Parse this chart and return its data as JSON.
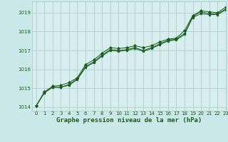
{
  "title": "Graphe pression niveau de la mer (hPa)",
  "bg_color": "#cbe8e8",
  "plot_bg_color": "#d6eeee",
  "grid_color": "#a8c8c8",
  "line_color": "#1a5c1a",
  "xlim": [
    -0.5,
    23
  ],
  "ylim": [
    1013.8,
    1019.6
  ],
  "yticks": [
    1014,
    1015,
    1016,
    1017,
    1018,
    1019
  ],
  "xticks": [
    0,
    1,
    2,
    3,
    4,
    5,
    6,
    7,
    8,
    9,
    10,
    11,
    12,
    13,
    14,
    15,
    16,
    17,
    18,
    19,
    20,
    21,
    22,
    23
  ],
  "series1_x": [
    0,
    1,
    2,
    3,
    4,
    5,
    6,
    7,
    8,
    9,
    10,
    11,
    12,
    13,
    14,
    15,
    16,
    17,
    18,
    19,
    20,
    21,
    22,
    23
  ],
  "series1_y": [
    1014.05,
    1014.8,
    1015.1,
    1015.15,
    1015.3,
    1015.55,
    1016.25,
    1016.5,
    1016.85,
    1017.15,
    1017.1,
    1017.15,
    1017.25,
    1017.15,
    1017.25,
    1017.45,
    1017.6,
    1017.65,
    1018.05,
    1018.85,
    1019.1,
    1019.05,
    1019.0,
    1019.3
  ],
  "series2_x": [
    0,
    1,
    2,
    3,
    4,
    5,
    6,
    7,
    8,
    9,
    10,
    11,
    12,
    13,
    14,
    15,
    16,
    17,
    18,
    19,
    20,
    21,
    22,
    23
  ],
  "series2_y": [
    1014.05,
    1014.75,
    1015.05,
    1015.05,
    1015.15,
    1015.45,
    1016.1,
    1016.35,
    1016.7,
    1017.0,
    1016.95,
    1017.0,
    1017.1,
    1016.95,
    1017.1,
    1017.3,
    1017.5,
    1017.55,
    1017.85,
    1018.75,
    1018.95,
    1018.9,
    1018.9,
    1019.15
  ],
  "series3_x": [
    0,
    1,
    2,
    3,
    4,
    5,
    6,
    7,
    8,
    9,
    10,
    11,
    12,
    13,
    14,
    15,
    16,
    17,
    18,
    19,
    20,
    21,
    22,
    23
  ],
  "series3_y": [
    1014.05,
    1014.75,
    1015.05,
    1015.05,
    1015.2,
    1015.5,
    1016.15,
    1016.4,
    1016.75,
    1017.05,
    1017.0,
    1017.05,
    1017.15,
    1017.0,
    1017.15,
    1017.35,
    1017.55,
    1017.6,
    1017.9,
    1018.8,
    1019.05,
    1018.95,
    1018.95,
    1019.2
  ],
  "title_fontsize": 6.5,
  "tick_fontsize": 5.0,
  "tick_label_color": "#1a5c1a"
}
